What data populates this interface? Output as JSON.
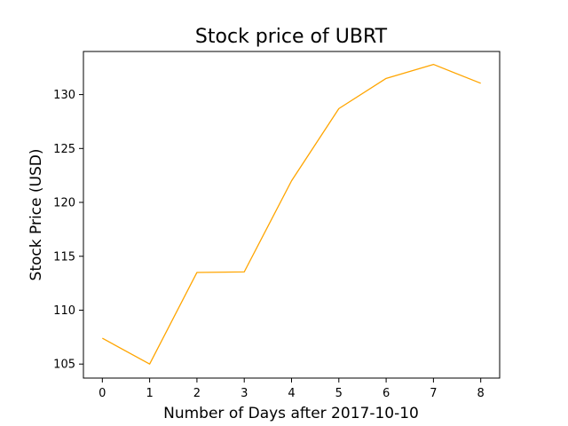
{
  "chart_data": {
    "type": "line",
    "title": "Stock price of UBRT",
    "xlabel": "Number of Days after 2017-10-10",
    "ylabel": "Stock Price (USD)",
    "x": [
      0,
      1,
      2,
      3,
      4,
      5,
      6,
      7,
      8
    ],
    "series": [
      {
        "values": [
          107.4,
          105.0,
          113.5,
          113.55,
          122.0,
          128.7,
          131.5,
          132.8,
          131.05
        ],
        "color": "#FFA500"
      }
    ],
    "xlim": [
      -0.4,
      8.4
    ],
    "ylim": [
      103.7,
      134.0
    ],
    "xticks": [
      0,
      1,
      2,
      3,
      4,
      5,
      6,
      7,
      8
    ],
    "yticks": [
      105,
      110,
      115,
      120,
      125,
      130
    ],
    "grid": false,
    "legend": "none"
  }
}
